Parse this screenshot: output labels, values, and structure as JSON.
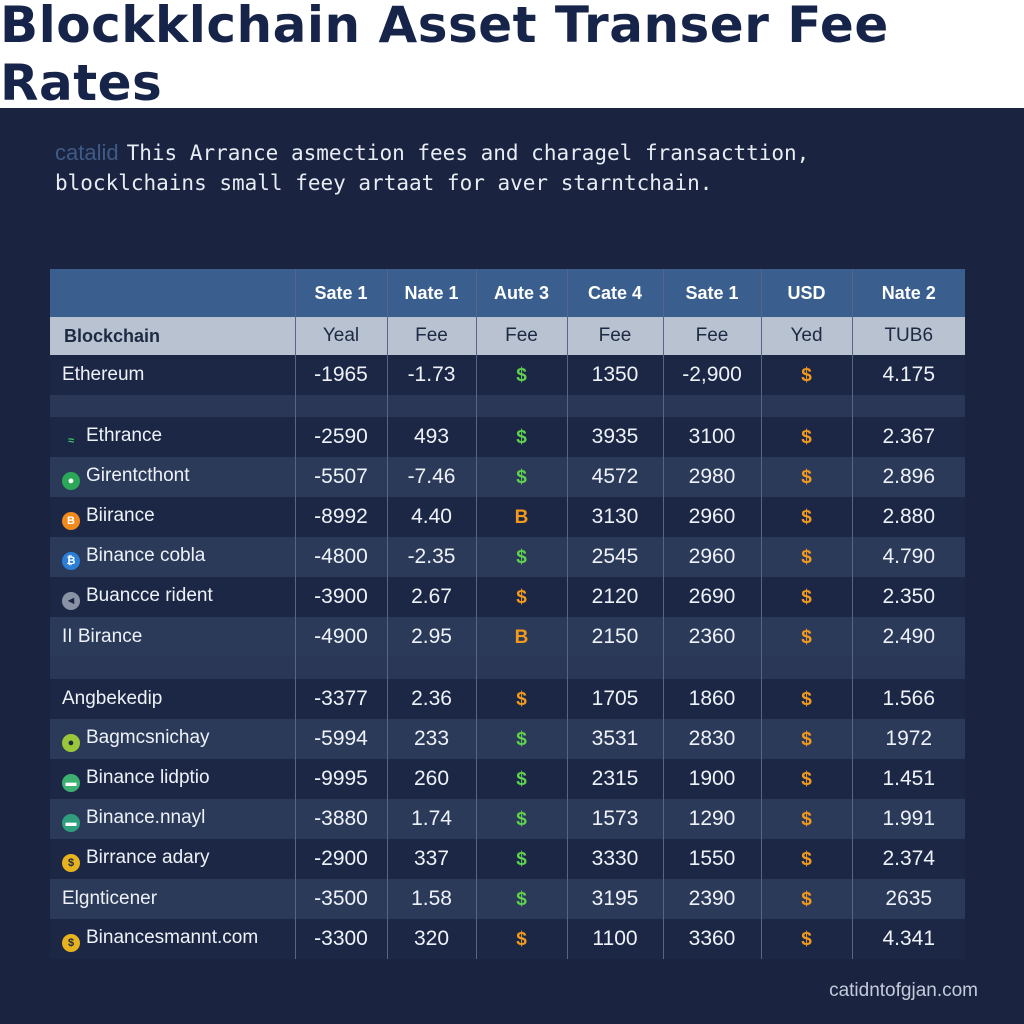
{
  "title": "Blockklchain Asset Transer Fee Rates",
  "subtitle": {
    "tag": "catalid",
    "line1": "This Arrance asmection fees and charagel fransacttion,",
    "line2": "blocklchains small feey artaat for aver starntchain."
  },
  "footer": "catidntofgjan.com",
  "colors": {
    "header_bg": "#ffffff",
    "page_bg": "#1a2440",
    "head_row": "#3a5f8e",
    "subhead_row": "#b9c2d0",
    "green": "#5fd14f",
    "orange": "#f39a1e"
  },
  "chart_data": {
    "type": "table",
    "title": "Blockklchain Asset Transer Fee Rates",
    "columns": [
      "",
      "Sate 1",
      "Nate 1",
      "Aute 3",
      "Cate 4",
      "Sate 1",
      "USD",
      "Nate 2"
    ],
    "subheaders": [
      "Blockchain",
      "Yeal",
      "Fee",
      "Fee",
      "Fee",
      "Fee",
      "Yed",
      "TUB6"
    ],
    "rows": [
      {
        "name": "Ethereum",
        "icon": "none",
        "values": [
          "-1965",
          "-1.73",
          "$",
          "1350",
          "-2,900",
          "$",
          "4.175"
        ],
        "syms": [
          "green",
          "orange"
        ]
      },
      {
        "spacer": true
      },
      {
        "name": "Ethrance",
        "icon": "wave-icon",
        "values": [
          "-2590",
          "493",
          "$",
          "3935",
          "3100",
          "$",
          "2.367"
        ],
        "syms": [
          "green",
          "orange"
        ]
      },
      {
        "name": "Girentcthont",
        "icon": "green-coin-icon",
        "values": [
          "-5507",
          "-7.46",
          "$",
          "4572",
          "2980",
          "$",
          "2.896"
        ],
        "syms": [
          "green",
          "orange"
        ]
      },
      {
        "name": "Biirance",
        "icon": "bitcoin-icon",
        "values": [
          "-8992",
          "4.40",
          "B",
          "3130",
          "2960",
          "$",
          "2.880"
        ],
        "syms": [
          "orange",
          "orange"
        ]
      },
      {
        "name": "Binance cobla",
        "icon": "blue-coin-icon",
        "values": [
          "-4800",
          "-2.35",
          "$",
          "2545",
          "2960",
          "$",
          "4.790"
        ],
        "syms": [
          "green",
          "orange"
        ]
      },
      {
        "name": "Buancce rident",
        "icon": "gray-coin-icon",
        "values": [
          "-3900",
          "2.67",
          "$",
          "2120",
          "2690",
          "$",
          "2.350"
        ],
        "syms": [
          "orange",
          "orange"
        ]
      },
      {
        "name": "II Birance",
        "icon": "none",
        "values": [
          "-4900",
          "2.95",
          "B",
          "2150",
          "2360",
          "$",
          "2.490"
        ],
        "syms": [
          "orange",
          "orange"
        ]
      },
      {
        "spacer": true
      },
      {
        "name": "Angbekedip",
        "icon": "none",
        "values": [
          "-3377",
          "2.36",
          "$",
          "1705",
          "1860",
          "$",
          "1.566"
        ],
        "syms": [
          "orange",
          "orange"
        ]
      },
      {
        "name": "Bagmcsnichay",
        "icon": "yellow-green-icon",
        "values": [
          "-5994",
          "233",
          "$",
          "3531",
          "2830",
          "$",
          "1972"
        ],
        "syms": [
          "green",
          "orange"
        ]
      },
      {
        "name": "Binance lidptio",
        "icon": "green-pill-icon",
        "values": [
          "-9995",
          "260",
          "$",
          "2315",
          "1900",
          "$",
          "1.451"
        ],
        "syms": [
          "green",
          "orange"
        ]
      },
      {
        "name": "Binance.nnayl",
        "icon": "teal-pill-icon",
        "values": [
          "-3880",
          "1.74",
          "$",
          "1573",
          "1290",
          "$",
          "1.991"
        ],
        "syms": [
          "green",
          "orange"
        ]
      },
      {
        "name": "Birrance adary",
        "icon": "yellow-coin-icon",
        "values": [
          "-2900",
          "337",
          "$",
          "3330",
          "1550",
          "$",
          "2.374"
        ],
        "syms": [
          "green",
          "orange"
        ]
      },
      {
        "name": "Elgnticener",
        "icon": "none",
        "values": [
          "-3500",
          "1.58",
          "$",
          "3195",
          "2390",
          "$",
          "2635"
        ],
        "syms": [
          "green",
          "orange"
        ]
      },
      {
        "name": "Binancesmannt.com",
        "icon": "yellow-coin-icon",
        "values": [
          "-3300",
          "320",
          "$",
          "1100",
          "3360",
          "$",
          "4.341"
        ],
        "syms": [
          "orange",
          "orange"
        ]
      }
    ]
  }
}
